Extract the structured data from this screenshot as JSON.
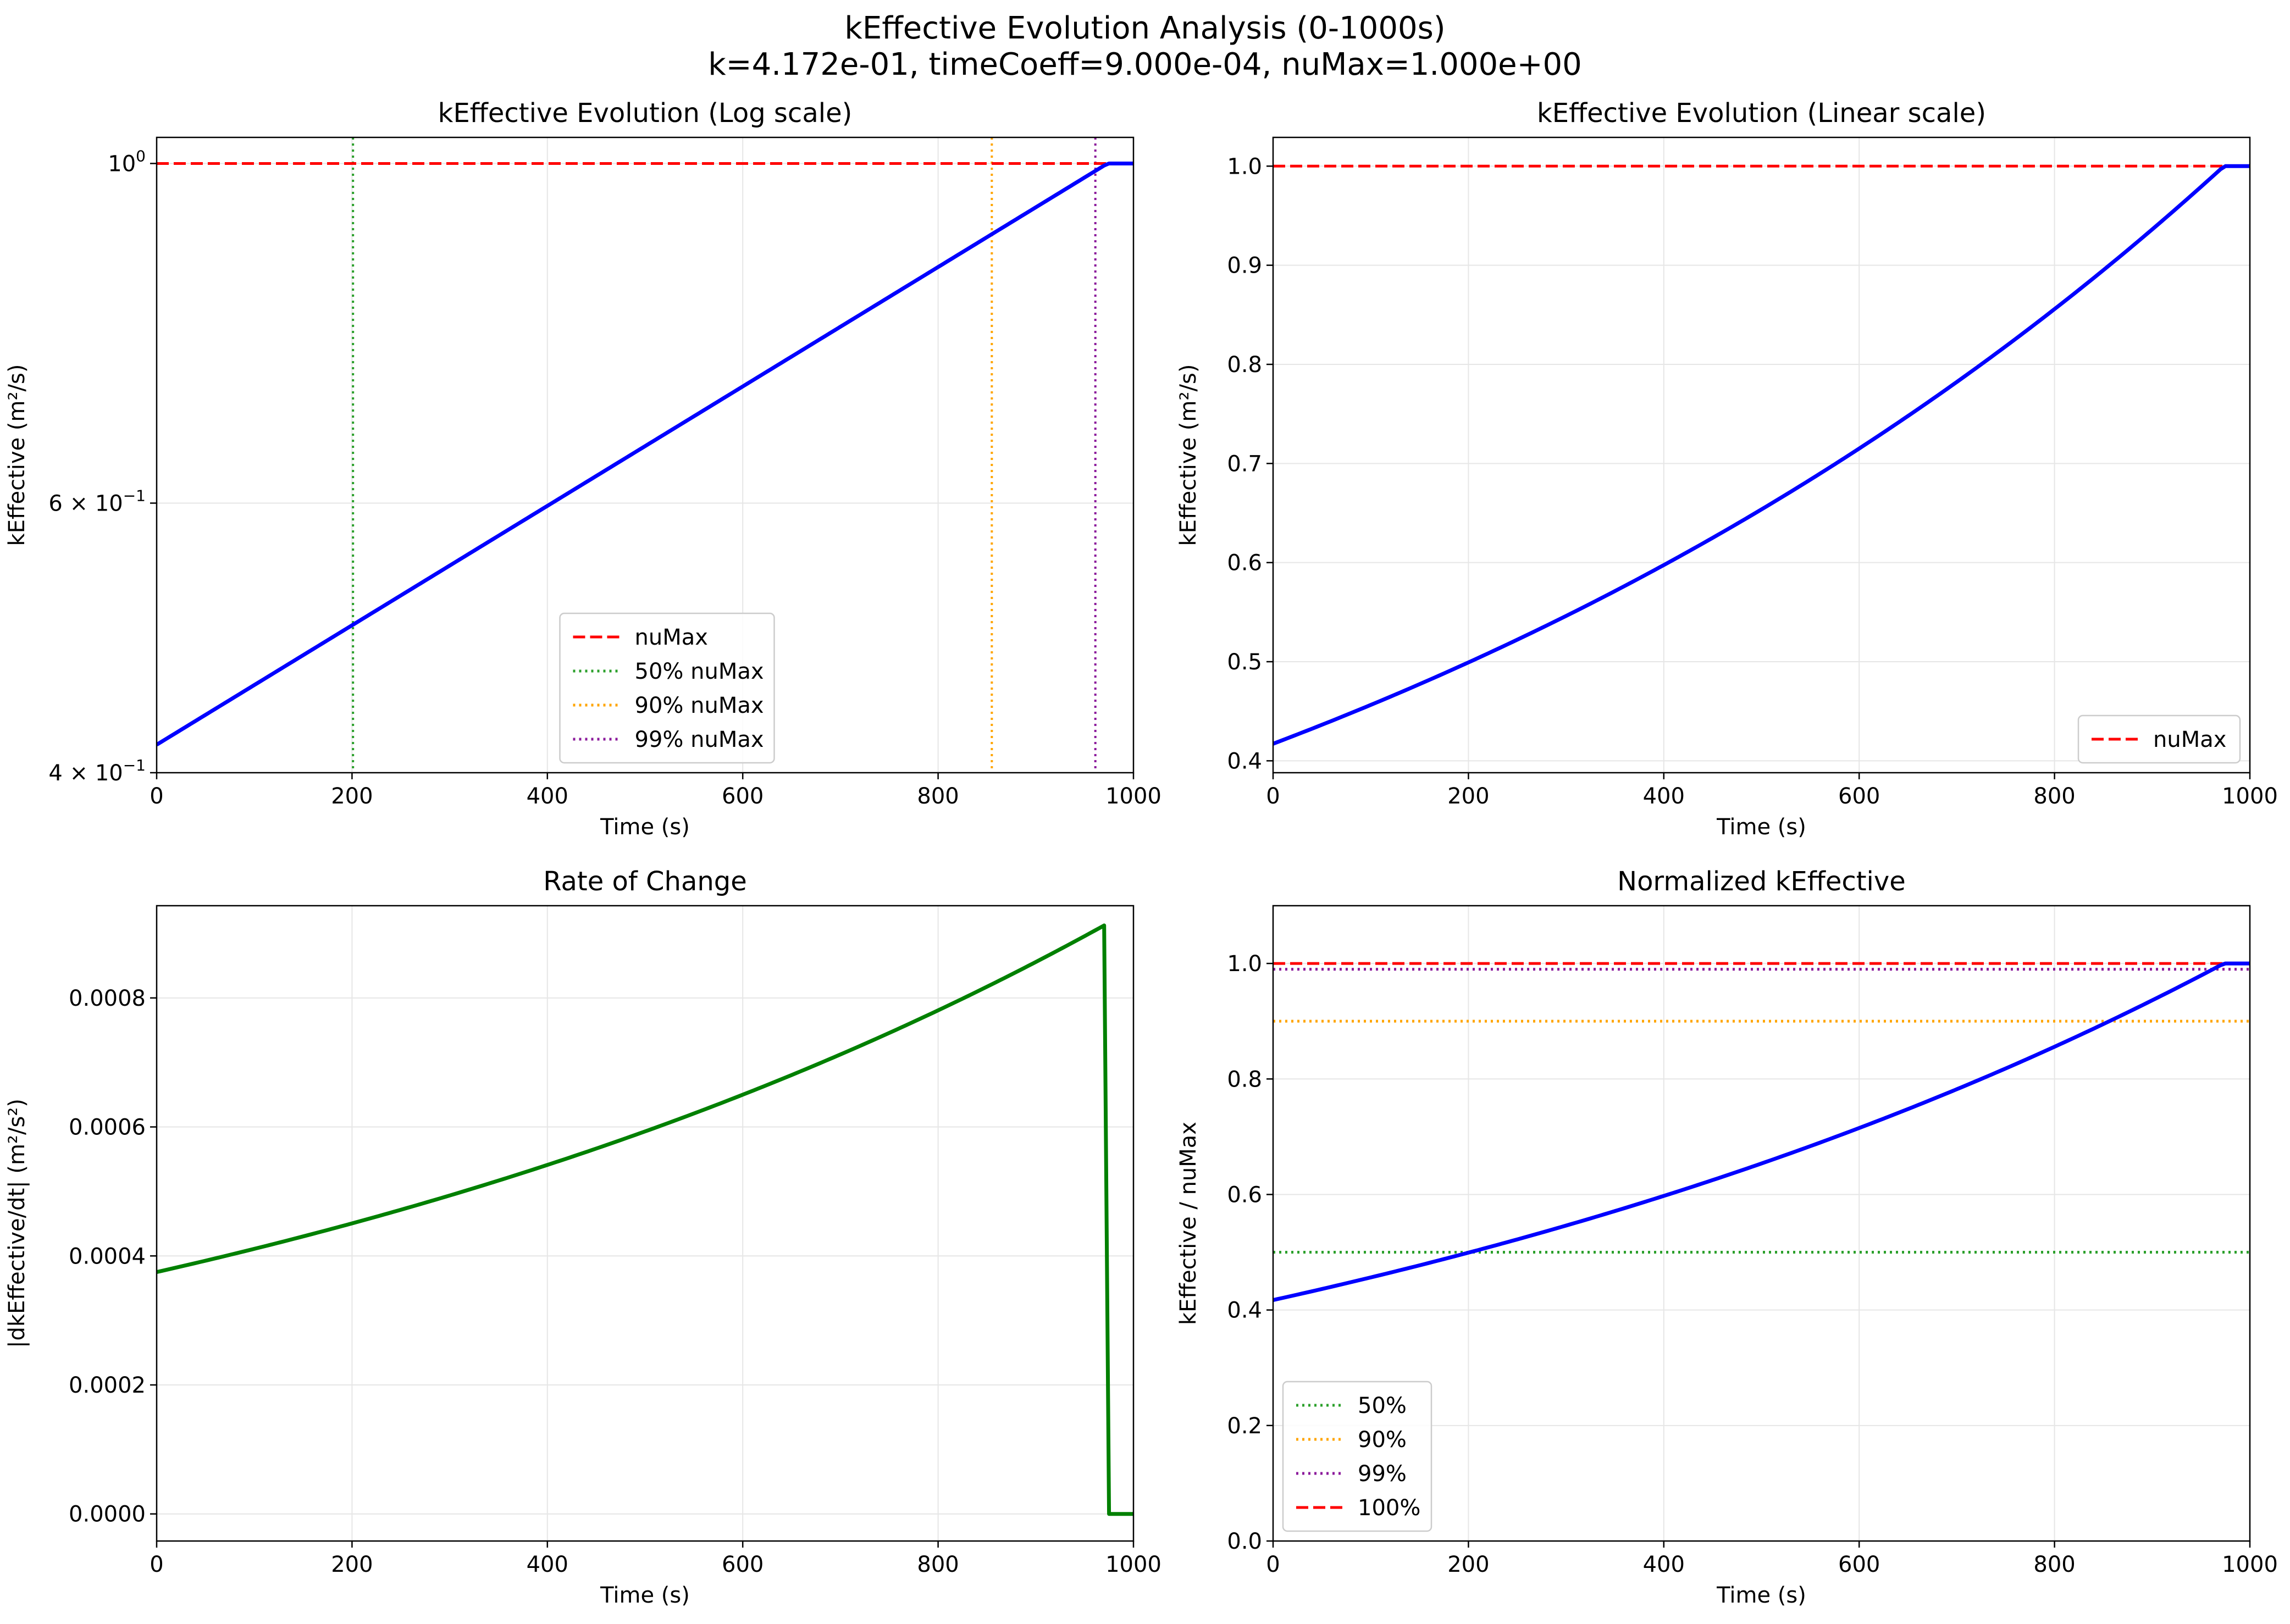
{
  "figure": {
    "title_line1": "kEffective Evolution Analysis (0-1000s)",
    "title_line2": "k=4.172e-01, timeCoeff=9.000e-04, nuMax=1.000e+00"
  },
  "colors": {
    "kEffective": "#0000ff",
    "rate": "#008000",
    "nuMax": "#ff0000",
    "p50": "#2ca02c",
    "p90": "#ffa500",
    "p99": "#8b1a9b",
    "grid": "#e6e6e6",
    "legend_border": "#cccccc"
  },
  "chart_data": [
    {
      "id": "log",
      "type": "line",
      "title": "kEffective Evolution (Log scale)",
      "xlabel": "Time (s)",
      "ylabel": "kEffective (m²/s)",
      "xscale": "linear",
      "yscale": "log",
      "xlim": [
        0,
        1000
      ],
      "ylim": [
        0.4,
        1.04
      ],
      "xticks": [
        0,
        200,
        400,
        600,
        800,
        1000
      ],
      "xtick_labels": [
        "0",
        "200",
        "400",
        "600",
        "800",
        "1000"
      ],
      "yticks": [
        {
          "value": 0.4,
          "mant": "4",
          "exp": "−1"
        },
        {
          "value": 0.6,
          "mant": "6",
          "exp": "−1"
        },
        {
          "value": 1.0,
          "mant": "",
          "exp": "0"
        }
      ],
      "grid": true,
      "series": [
        {
          "name": "kEffective",
          "style": "solid",
          "color_key": "kEffective",
          "x": [
            0,
            100,
            200,
            300,
            400,
            500,
            600,
            700,
            800,
            900,
            972,
            1000
          ],
          "y": [
            0.4172,
            0.4564,
            0.4992,
            0.5461,
            0.5974,
            0.6535,
            0.7149,
            0.782,
            0.8555,
            0.9358,
            1.0,
            1.0
          ]
        }
      ],
      "hlines": [
        {
          "name": "nuMax",
          "y": 1.0,
          "style": "dashed",
          "color_key": "nuMax"
        }
      ],
      "vlines": [
        {
          "name": "50% nuMax",
          "x": 201,
          "style": "dotted",
          "color_key": "p50"
        },
        {
          "name": "90% nuMax",
          "x": 855,
          "style": "dotted",
          "color_key": "p90"
        },
        {
          "name": "99% nuMax",
          "x": 961,
          "style": "dotted",
          "color_key": "p99"
        }
      ],
      "legend": {
        "position": "lower center",
        "entries": [
          {
            "label": "nuMax",
            "style": "dashed",
            "color_key": "nuMax"
          },
          {
            "label": "50% nuMax",
            "style": "dotted",
            "color_key": "p50"
          },
          {
            "label": "90% nuMax",
            "style": "dotted",
            "color_key": "p90"
          },
          {
            "label": "99% nuMax",
            "style": "dotted",
            "color_key": "p99"
          }
        ]
      }
    },
    {
      "id": "lin",
      "type": "line",
      "title": "kEffective Evolution (Linear scale)",
      "xlabel": "Time (s)",
      "ylabel": "kEffective (m²/s)",
      "xscale": "linear",
      "yscale": "linear",
      "xlim": [
        0,
        1000
      ],
      "ylim": [
        0.388,
        1.029
      ],
      "xticks": [
        0,
        200,
        400,
        600,
        800,
        1000
      ],
      "xtick_labels": [
        "0",
        "200",
        "400",
        "600",
        "800",
        "1000"
      ],
      "yticks": [
        0.4,
        0.5,
        0.6,
        0.7,
        0.8,
        0.9,
        1.0
      ],
      "ytick_labels": [
        "0.4",
        "0.5",
        "0.6",
        "0.7",
        "0.8",
        "0.9",
        "1.0"
      ],
      "grid": true,
      "series": [
        {
          "name": "kEffective",
          "style": "solid",
          "color_key": "kEffective",
          "x": [
            0,
            100,
            200,
            300,
            400,
            500,
            600,
            700,
            800,
            900,
            972,
            1000
          ],
          "y": [
            0.4172,
            0.4564,
            0.4992,
            0.5461,
            0.5974,
            0.6535,
            0.7149,
            0.782,
            0.8555,
            0.9358,
            1.0,
            1.0
          ]
        }
      ],
      "hlines": [
        {
          "name": "nuMax",
          "y": 1.0,
          "style": "dashed",
          "color_key": "nuMax"
        }
      ],
      "vlines": [],
      "legend": {
        "position": "lower right",
        "entries": [
          {
            "label": "nuMax",
            "style": "dashed",
            "color_key": "nuMax"
          }
        ]
      }
    },
    {
      "id": "rate",
      "type": "line",
      "title": "Rate of Change",
      "xlabel": "Time (s)",
      "ylabel": "|dkEffective/dt| (m²/s²)",
      "xscale": "linear",
      "yscale": "linear",
      "xlim": [
        0,
        1000
      ],
      "ylim": [
        -4.2e-05,
        0.000943
      ],
      "xticks": [
        0,
        200,
        400,
        600,
        800,
        1000
      ],
      "xtick_labels": [
        "0",
        "200",
        "400",
        "600",
        "800",
        "1000"
      ],
      "yticks": [
        0,
        0.0002,
        0.0004,
        0.0006,
        0.0008
      ],
      "ytick_labels": [
        "0.0000",
        "0.0002",
        "0.0004",
        "0.0006",
        "0.0008"
      ],
      "grid": true,
      "series": [
        {
          "name": "rate",
          "style": "solid",
          "color_key": "rate",
          "x": [
            0,
            100,
            200,
            300,
            400,
            500,
            600,
            700,
            800,
            900,
            970,
            975,
            1000
          ],
          "y": [
            0.000375,
            0.000411,
            0.000449,
            0.000491,
            0.000538,
            0.000588,
            0.000643,
            0.000704,
            0.00077,
            0.000842,
            0.000898,
            0.0,
            0.0
          ]
        }
      ],
      "hlines": [],
      "vlines": [],
      "legend": null
    },
    {
      "id": "norm",
      "type": "line",
      "title": "Normalized kEffective",
      "xlabel": "Time (s)",
      "ylabel": "kEffective / nuMax",
      "xscale": "linear",
      "yscale": "linear",
      "xlim": [
        0,
        1000
      ],
      "ylim": [
        0,
        1.1
      ],
      "xticks": [
        0,
        200,
        400,
        600,
        800,
        1000
      ],
      "xtick_labels": [
        "0",
        "200",
        "400",
        "600",
        "800",
        "1000"
      ],
      "yticks": [
        0,
        0.2,
        0.4,
        0.6,
        0.8,
        1.0
      ],
      "ytick_labels": [
        "0.0",
        "0.2",
        "0.4",
        "0.6",
        "0.8",
        "1.0"
      ],
      "grid": true,
      "series": [
        {
          "name": "kEffective",
          "style": "solid",
          "color_key": "kEffective",
          "x": [
            0,
            100,
            200,
            300,
            400,
            500,
            600,
            700,
            800,
            900,
            972,
            1000
          ],
          "y": [
            0.4172,
            0.4564,
            0.4992,
            0.5461,
            0.5974,
            0.6535,
            0.7149,
            0.782,
            0.8555,
            0.9358,
            1.0,
            1.0
          ]
        }
      ],
      "hlines": [
        {
          "name": "50%",
          "y": 0.5,
          "style": "dotted",
          "color_key": "p50"
        },
        {
          "name": "90%",
          "y": 0.9,
          "style": "dotted",
          "color_key": "p90"
        },
        {
          "name": "99%",
          "y": 0.99,
          "style": "dotted",
          "color_key": "p99"
        },
        {
          "name": "100%",
          "y": 1.0,
          "style": "dashed",
          "color_key": "nuMax"
        }
      ],
      "vlines": [],
      "legend": {
        "position": "lower left",
        "entries": [
          {
            "label": "50%",
            "style": "dotted",
            "color_key": "p50"
          },
          {
            "label": "90%",
            "style": "dotted",
            "color_key": "p90"
          },
          {
            "label": "99%",
            "style": "dotted",
            "color_key": "p99"
          },
          {
            "label": "100%",
            "style": "dashed",
            "color_key": "nuMax"
          }
        ]
      }
    }
  ]
}
